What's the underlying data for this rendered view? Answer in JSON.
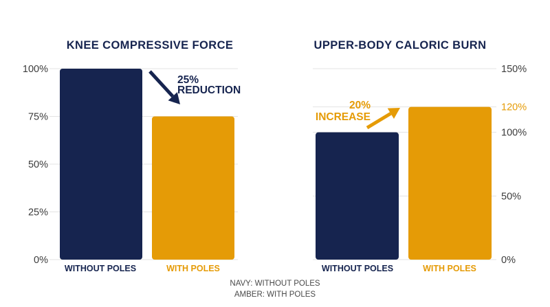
{
  "colors": {
    "navy": "#16244f",
    "amber": "#e59b06",
    "grid": "#e3e3e3",
    "text": "#3c3c3c"
  },
  "chart_data": [
    {
      "type": "bar",
      "title": "KNEE COMPRESSIVE FORCE",
      "categories": [
        "WITHOUT POLES",
        "WITH POLES"
      ],
      "values": [
        100,
        75
      ],
      "ylim": [
        0,
        100
      ],
      "yticks": [
        0,
        25,
        50,
        75,
        100
      ],
      "ytick_labels": [
        "0%",
        "25%",
        "50%",
        "75%",
        "100%"
      ],
      "axis_side": "left",
      "grid": true,
      "annotation": {
        "lines": [
          "25%",
          "REDUCTION"
        ],
        "arrow": "down"
      }
    },
    {
      "type": "bar",
      "title": "UPPER-BODY CALORIC BURN",
      "categories": [
        "WITHOUT POLES",
        "WITH POLES"
      ],
      "values": [
        100,
        120
      ],
      "ylim": [
        0,
        150
      ],
      "yticks": [
        0,
        50,
        100,
        120,
        150
      ],
      "ytick_labels": [
        "0%",
        "50%",
        "100%",
        "120%",
        "150%"
      ],
      "axis_side": "right",
      "grid": true,
      "annotation": {
        "lines": [
          "20%",
          "INCREASE"
        ],
        "arrow": "up"
      }
    }
  ],
  "legend": {
    "lines": [
      "NAVY: WITHOUT POLES",
      "AMBER: WITH POLES"
    ]
  }
}
